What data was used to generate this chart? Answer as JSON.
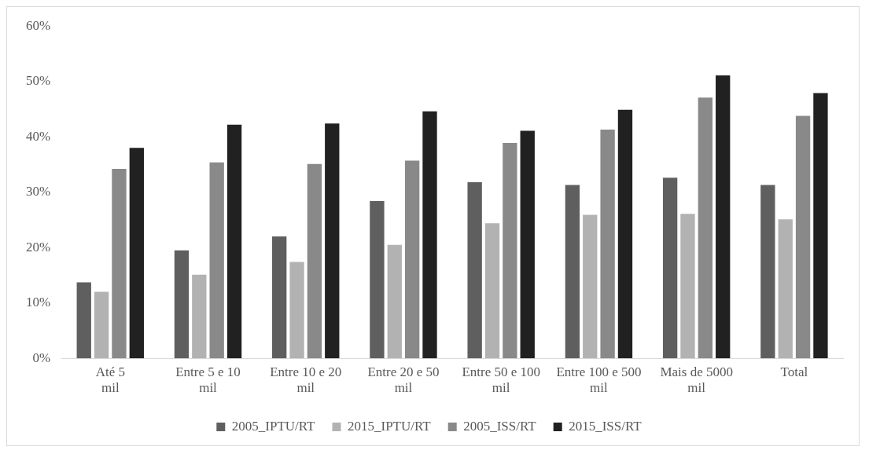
{
  "chart_data": {
    "type": "bar",
    "categories": [
      "Até 5 mil",
      "Entre 5 e 10 mil",
      "Entre 10 e 20 mil",
      "Entre 20 e 50 mil",
      "Entre 50 e 100 mil",
      "Entre 100 e 500 mil",
      "Mais de 5000 mil",
      "Total"
    ],
    "series": [
      {
        "name": "2005_IPTU/RT",
        "color": "#5f5f5f",
        "values": [
          13.7,
          19.5,
          22.0,
          28.4,
          31.8,
          31.3,
          32.6,
          31.3
        ]
      },
      {
        "name": "2015_IPTU/RT",
        "color": "#b2b2b2",
        "values": [
          12.0,
          15.1,
          17.4,
          20.5,
          24.4,
          25.9,
          26.1,
          25.1
        ]
      },
      {
        "name": "2005_ISS/RT",
        "color": "#898989",
        "values": [
          34.2,
          35.4,
          35.1,
          35.7,
          38.9,
          41.3,
          47.1,
          43.8
        ]
      },
      {
        "name": "2015_ISS/RT",
        "color": "#212121",
        "values": [
          38.0,
          42.2,
          42.4,
          44.6,
          41.1,
          44.9,
          51.1,
          47.9
        ]
      }
    ],
    "ylim": [
      0,
      60
    ],
    "yticks": [
      {
        "value": 0,
        "label": "0%"
      },
      {
        "value": 10,
        "label": "10%"
      },
      {
        "value": 20,
        "label": "20%"
      },
      {
        "value": 30,
        "label": "30%"
      },
      {
        "value": 40,
        "label": "40%"
      },
      {
        "value": 50,
        "label": "50%"
      },
      {
        "value": 60,
        "label": "60%"
      }
    ],
    "grid": false,
    "legend": "bottom"
  }
}
